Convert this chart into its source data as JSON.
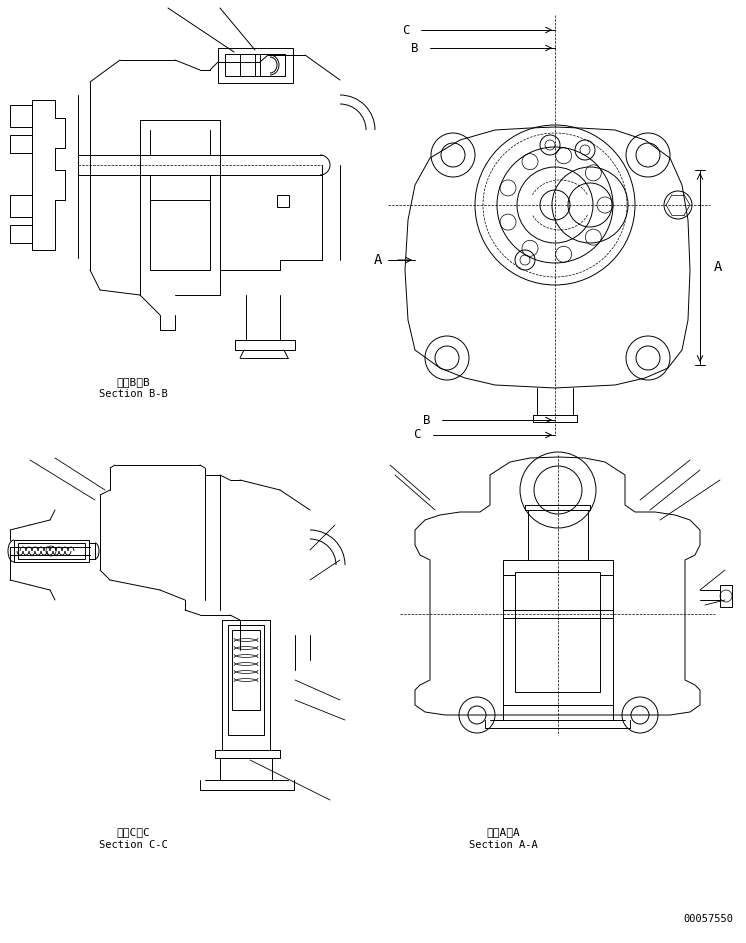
{
  "bg_color": "#ffffff",
  "line_color": "#000000",
  "fig_width": 7.46,
  "fig_height": 9.43,
  "dpi": 100,
  "label_bb": "断面B－B",
  "label_bb_en": "Section B-B",
  "label_cc": "断面C－C",
  "label_cc_en": "Section C-C",
  "label_aa": "断面A－A",
  "label_aa_en": "Section A-A",
  "part_number": "00057550",
  "dim_A": "A",
  "dim_B": "B",
  "dim_C": "C"
}
